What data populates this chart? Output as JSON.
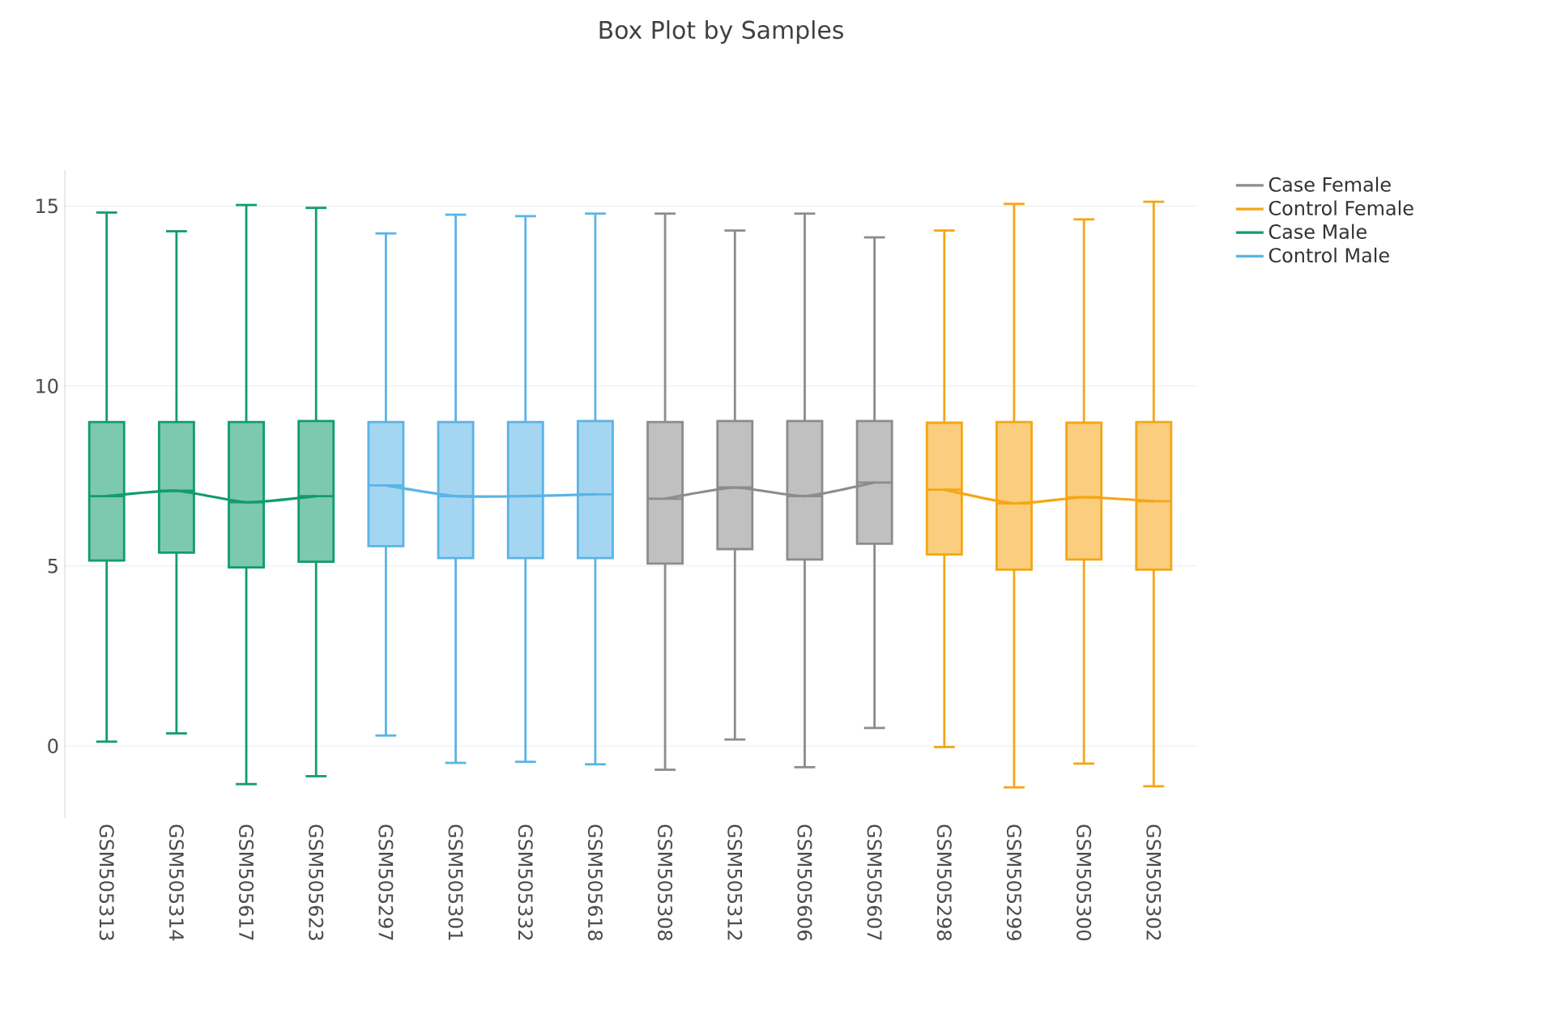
{
  "chart_data": {
    "type": "box",
    "title": "Box Plot by Samples",
    "categories": [
      "GSM505313",
      "GSM505314",
      "GSM505617",
      "GSM505623",
      "GSM505297",
      "GSM505301",
      "GSM505332",
      "GSM505618",
      "GSM505308",
      "GSM505312",
      "GSM505606",
      "GSM505607",
      "GSM505298",
      "GSM505299",
      "GSM505300",
      "GSM505302"
    ],
    "ylim": [
      -2,
      16
    ],
    "yticks": [
      0,
      5,
      10,
      15
    ],
    "grid": "y",
    "legend": "top right",
    "series": [
      {
        "name": "Case Female",
        "type": "line",
        "color": "#8c8c8c",
        "values": [
          null,
          null,
          null,
          null,
          null,
          null,
          null,
          null,
          6.87,
          7.18,
          6.94,
          7.32,
          null,
          null,
          null,
          null
        ]
      },
      {
        "name": "Control Female",
        "type": "line",
        "color": "#f5a614",
        "values": [
          null,
          null,
          null,
          null,
          null,
          null,
          null,
          null,
          null,
          null,
          null,
          null,
          7.12,
          6.74,
          6.91,
          6.8
        ]
      },
      {
        "name": "Case Male",
        "type": "line",
        "color": "#119c6e",
        "values": [
          6.94,
          7.09,
          6.77,
          6.94,
          null,
          null,
          null,
          null,
          null,
          null,
          null,
          null,
          null,
          null,
          null,
          null
        ]
      },
      {
        "name": "Control Male",
        "type": "line",
        "color": "#5ab4e5",
        "values": [
          null,
          null,
          null,
          null,
          7.24,
          6.94,
          6.94,
          6.99,
          null,
          null,
          null,
          null,
          null,
          null,
          null,
          null
        ]
      },
      {
        "type": "box",
        "color": "#8c8c8c",
        "boxes": [
          null,
          null,
          null,
          null,
          null,
          null,
          null,
          null,
          {
            "low": -0.66,
            "q1": 5.07,
            "median": 6.87,
            "q3": 9.0,
            "high": 14.79
          },
          {
            "low": 0.18,
            "q1": 5.47,
            "median": 7.18,
            "q3": 9.03,
            "high": 14.32
          },
          {
            "low": -0.59,
            "q1": 5.18,
            "median": 6.94,
            "q3": 9.03,
            "high": 14.79
          },
          {
            "low": 0.5,
            "q1": 5.62,
            "median": 7.32,
            "q3": 9.03,
            "high": 14.13
          },
          null,
          null,
          null,
          null
        ]
      },
      {
        "type": "box",
        "color": "#f5a614",
        "boxes": [
          null,
          null,
          null,
          null,
          null,
          null,
          null,
          null,
          null,
          null,
          null,
          null,
          {
            "low": -0.03,
            "q1": 5.32,
            "median": 7.12,
            "q3": 8.98,
            "high": 14.32
          },
          {
            "low": -1.15,
            "q1": 4.9,
            "median": 6.74,
            "q3": 9.0,
            "high": 15.06
          },
          {
            "low": -0.49,
            "q1": 5.18,
            "median": 6.91,
            "q3": 8.98,
            "high": 14.63
          },
          {
            "low": -1.12,
            "q1": 4.9,
            "median": 6.8,
            "q3": 9.0,
            "high": 15.12
          }
        ]
      },
      {
        "type": "box",
        "color": "#119c6e",
        "boxes": [
          {
            "low": 0.12,
            "q1": 5.15,
            "median": 6.94,
            "q3": 9.0,
            "high": 14.82
          },
          {
            "low": 0.35,
            "q1": 5.37,
            "median": 7.09,
            "q3": 9.0,
            "high": 14.3
          },
          {
            "low": -1.06,
            "q1": 4.96,
            "median": 6.77,
            "q3": 9.0,
            "high": 15.03
          },
          {
            "low": -0.84,
            "q1": 5.12,
            "median": 6.94,
            "q3": 9.03,
            "high": 14.95
          },
          null,
          null,
          null,
          null,
          null,
          null,
          null,
          null,
          null,
          null,
          null,
          null
        ]
      },
      {
        "type": "box",
        "color": "#5ab4e5",
        "boxes": [
          null,
          null,
          null,
          null,
          {
            "low": 0.29,
            "q1": 5.55,
            "median": 7.24,
            "q3": 9.0,
            "high": 14.24
          },
          {
            "low": -0.47,
            "q1": 5.22,
            "median": 6.94,
            "q3": 9.0,
            "high": 14.76
          },
          {
            "low": -0.44,
            "q1": 5.22,
            "median": 6.94,
            "q3": 9.0,
            "high": 14.72
          },
          {
            "low": -0.51,
            "q1": 5.22,
            "median": 6.99,
            "q3": 9.03,
            "high": 14.79
          },
          null,
          null,
          null,
          null,
          null,
          null,
          null,
          null
        ]
      }
    ]
  }
}
